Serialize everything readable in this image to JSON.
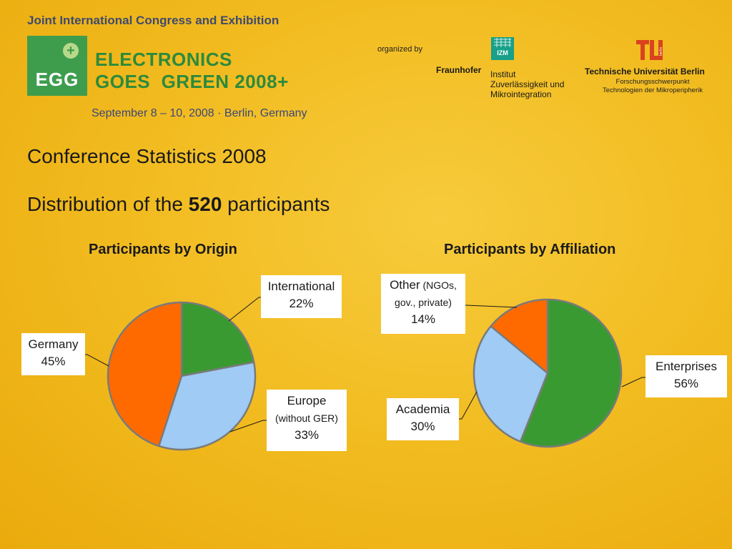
{
  "header": {
    "congress": "Joint International Congress and Exhibition",
    "logo_abbr": "EGG",
    "logo_plus": "+",
    "event_line1": "ELECTRONICS",
    "event_line2": "GOES  GREEN 2008+",
    "event_date": "September 8 – 10, 2008 · Berlin, Germany",
    "organized_by": "organized by",
    "fraunhofer": "Fraunhofer",
    "izm_abbr": "IZM",
    "izm_line1": "Institut",
    "izm_line2": "Zuverlässigkeit und",
    "izm_line3": "Mikrointegration",
    "tu_name": "Technische Universität Berlin",
    "tu_sub1": "Forschungsschwerpunkt",
    "tu_sub2": "Technologien der Mikroperipherik",
    "tu_badge": "berlin"
  },
  "headings": {
    "title": "Conference Statistics 2008",
    "subtitle_pre": "Distribution of the ",
    "subtitle_num": "520",
    "subtitle_post": " participants"
  },
  "colors": {
    "green": "#3a9a32",
    "blue": "#9fcbf5",
    "orange": "#ff6a00",
    "slice_border": "#7a7a7a",
    "brand_green": "#3e9d4d"
  },
  "chart_data": [
    {
      "type": "pie",
      "title": "Participants by Origin",
      "slices": [
        {
          "name": "International",
          "value": 22,
          "color": "#3a9a32"
        },
        {
          "name": "Europe",
          "value": 33,
          "color": "#9fcbf5"
        },
        {
          "name": "Germany",
          "value": 45,
          "color": "#ff6a00"
        }
      ],
      "labels": {
        "international": {
          "line1": "International",
          "line2": "22%"
        },
        "europe": {
          "line1": "Europe",
          "line2": "(without GER)",
          "line3": "33%"
        },
        "germany": {
          "line1": "Germany",
          "line2": "45%"
        }
      }
    },
    {
      "type": "pie",
      "title": "Participants by Affiliation",
      "slices": [
        {
          "name": "Enterprises",
          "value": 56,
          "color": "#3a9a32"
        },
        {
          "name": "Academia",
          "value": 30,
          "color": "#9fcbf5"
        },
        {
          "name": "Other",
          "value": 14,
          "color": "#ff6a00"
        }
      ],
      "labels": {
        "other": {
          "line1": "Other",
          "line1b": " (NGOs,",
          "line2": "gov., private)",
          "line3": "14%"
        },
        "academia": {
          "line1": "Academia",
          "line2": "30%"
        },
        "enterprises": {
          "line1": "Enterprises",
          "line2": "56%"
        }
      }
    }
  ]
}
